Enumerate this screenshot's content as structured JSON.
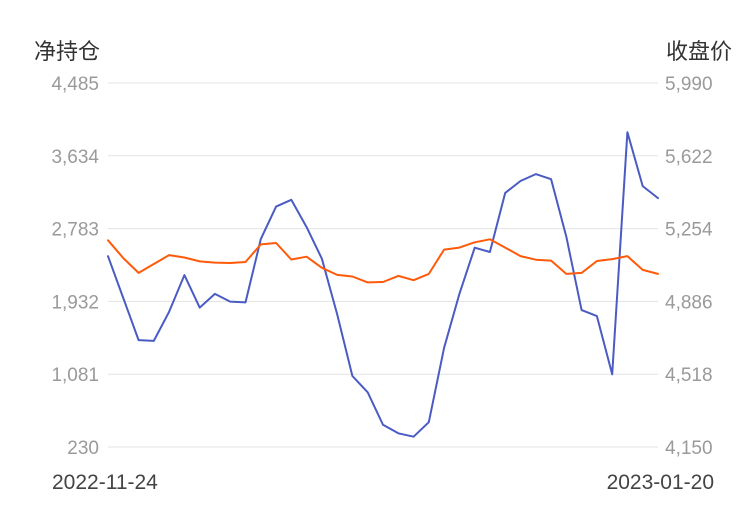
{
  "chart_data": {
    "type": "line",
    "left_axis_title": "净持仓",
    "right_axis_title": "收盘价",
    "left_ticks": [
      "4,485",
      "3,634",
      "2,783",
      "1,932",
      "1,081",
      "230"
    ],
    "right_ticks": [
      "5,990",
      "5,622",
      "5,254",
      "4,886",
      "4,518",
      "4,150"
    ],
    "left_ylim": [
      230,
      4485
    ],
    "right_ylim": [
      4150,
      5990
    ],
    "x_start_label": "2022-11-24",
    "x_end_label": "2023-01-20",
    "grid": true,
    "series": [
      {
        "axis": "left",
        "color": "#4a5bc4",
        "values": [
          2460,
          1970,
          1480,
          1470,
          1810,
          2240,
          1860,
          2020,
          1930,
          1920,
          2660,
          3040,
          3120,
          2800,
          2430,
          1780,
          1060,
          870,
          490,
          390,
          350,
          520,
          1390,
          2020,
          2560,
          2510,
          3200,
          3340,
          3420,
          3360,
          2690,
          1830,
          1760,
          1080,
          3910,
          3280,
          3140
        ]
      },
      {
        "axis": "right",
        "color": "#ff5a0a",
        "values": [
          5195,
          5105,
          5030,
          5075,
          5120,
          5108,
          5088,
          5082,
          5080,
          5085,
          5174,
          5181,
          5098,
          5112,
          5056,
          5020,
          5012,
          4982,
          4984,
          5015,
          4993,
          5025,
          5148,
          5158,
          5185,
          5200,
          5158,
          5115,
          5097,
          5092,
          5025,
          5030,
          5090,
          5100,
          5115,
          5045,
          5025
        ]
      }
    ]
  }
}
